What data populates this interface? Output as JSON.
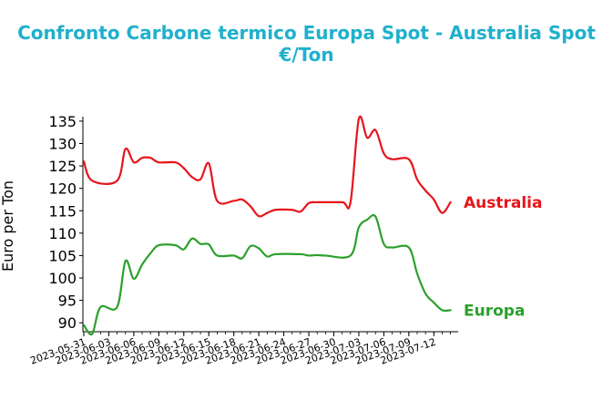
{
  "chart_data": {
    "type": "line",
    "title_line1": "Confronto Carbone termico Europa Spot - Australia Spot",
    "title_line2": "€/Ton",
    "ylabel": "Euro per Ton",
    "xlabel": "",
    "ylim": [
      88,
      136
    ],
    "yticks": [
      90,
      95,
      100,
      105,
      110,
      115,
      120,
      125,
      130,
      135
    ],
    "x_start": "2023-05-31",
    "xticks": [
      "2023-05-31",
      "2023-06-03",
      "2023-06-06",
      "2023-06-09",
      "2023-06-12",
      "2023-06-15",
      "2023-06-18",
      "2023-06-21",
      "2023-06-24",
      "2023-06-27",
      "2023-06-30",
      "2023-07-03",
      "2023-07-06",
      "2023-07-09",
      "2023-07-12"
    ],
    "grid": false,
    "series": [
      {
        "name": "Australia",
        "color": "#e8141b",
        "points": [
          [
            "2023-05-31",
            126
          ],
          [
            "2023-06-01",
            121.7
          ],
          [
            "2023-06-04",
            121.7
          ],
          [
            "2023-06-05",
            128.8
          ],
          [
            "2023-06-06",
            125.8
          ],
          [
            "2023-06-07",
            126.8
          ],
          [
            "2023-06-08",
            126.8
          ],
          [
            "2023-06-09",
            125.8
          ],
          [
            "2023-06-11",
            125.8
          ],
          [
            "2023-06-12",
            124.5
          ],
          [
            "2023-06-13",
            122.5
          ],
          [
            "2023-06-14",
            122
          ],
          [
            "2023-06-15",
            125.6
          ],
          [
            "2023-06-16",
            117.2
          ],
          [
            "2023-06-18",
            117.2
          ],
          [
            "2023-06-19",
            117.5
          ],
          [
            "2023-06-20",
            116
          ],
          [
            "2023-06-21",
            113.8
          ],
          [
            "2023-06-22",
            114.5
          ],
          [
            "2023-06-23",
            115.2
          ],
          [
            "2023-06-25",
            115.2
          ],
          [
            "2023-06-26",
            114.8
          ],
          [
            "2023-06-27",
            116.7
          ],
          [
            "2023-06-28",
            116.9
          ],
          [
            "2023-07-01",
            116.9
          ],
          [
            "2023-07-02",
            116.9
          ],
          [
            "2023-07-03",
            135.5
          ],
          [
            "2023-07-04",
            131.3
          ],
          [
            "2023-07-05",
            133
          ],
          [
            "2023-07-06",
            127.8
          ],
          [
            "2023-07-07",
            126.5
          ],
          [
            "2023-07-09",
            126.5
          ],
          [
            "2023-07-10",
            122
          ],
          [
            "2023-07-11",
            119.5
          ],
          [
            "2023-07-12",
            117.5
          ],
          [
            "2023-07-13",
            114.5
          ],
          [
            "2023-07-14",
            116.9
          ]
        ]
      },
      {
        "name": "Europa",
        "color": "#2ca02c",
        "points": [
          [
            "2023-05-31",
            89.5
          ],
          [
            "2023-06-01",
            87.5
          ],
          [
            "2023-06-02",
            93.5
          ],
          [
            "2023-06-04",
            93.5
          ],
          [
            "2023-06-05",
            103.8
          ],
          [
            "2023-06-06",
            99.8
          ],
          [
            "2023-06-07",
            103
          ],
          [
            "2023-06-08",
            105.5
          ],
          [
            "2023-06-09",
            107.3
          ],
          [
            "2023-06-11",
            107.3
          ],
          [
            "2023-06-12",
            106.4
          ],
          [
            "2023-06-13",
            108.8
          ],
          [
            "2023-06-14",
            107.6
          ],
          [
            "2023-06-15",
            107.5
          ],
          [
            "2023-06-16",
            105
          ],
          [
            "2023-06-18",
            105
          ],
          [
            "2023-06-19",
            104.4
          ],
          [
            "2023-06-20",
            107.1
          ],
          [
            "2023-06-21",
            106.6
          ],
          [
            "2023-06-22",
            104.8
          ],
          [
            "2023-06-23",
            105.3
          ],
          [
            "2023-06-26",
            105.3
          ],
          [
            "2023-06-27",
            105
          ],
          [
            "2023-06-28",
            105.1
          ],
          [
            "2023-06-29",
            105
          ],
          [
            "2023-07-02",
            105
          ],
          [
            "2023-07-03",
            111.3
          ],
          [
            "2023-07-04",
            113
          ],
          [
            "2023-07-05",
            113.7
          ],
          [
            "2023-07-06",
            107.6
          ],
          [
            "2023-07-07",
            106.8
          ],
          [
            "2023-07-09",
            106.8
          ],
          [
            "2023-07-10",
            101
          ],
          [
            "2023-07-11",
            96.5
          ],
          [
            "2023-07-12",
            94.5
          ],
          [
            "2023-07-13",
            92.8
          ],
          [
            "2023-07-14",
            92.8
          ]
        ]
      }
    ]
  }
}
